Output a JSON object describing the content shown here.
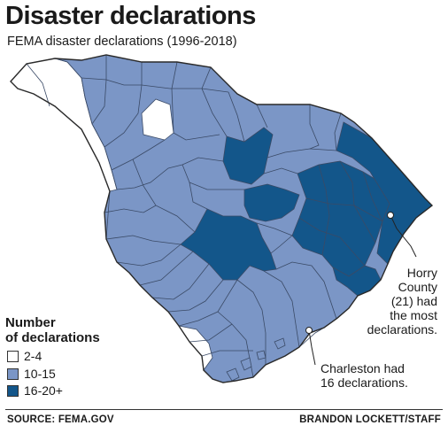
{
  "title": "Disaster declarations",
  "subtitle": "FEMA disaster declarations (1996-2018)",
  "legend": {
    "title_line1": "Number",
    "title_line2": "of declarations",
    "items": [
      {
        "label": "2-4",
        "color": "#ffffff"
      },
      {
        "label": "10-15",
        "color": "#7b96c6"
      },
      {
        "label": "16-20+",
        "color": "#13568a"
      }
    ]
  },
  "annotations": {
    "horry": [
      "Horry",
      "County",
      "(21) had",
      "the most",
      "declarations."
    ],
    "charleston": [
      "Charleston had",
      "16 declarations."
    ]
  },
  "footer": {
    "source": "SOURCE:  FEMA.GOV",
    "credit": "BRANDON LOCKETT/STAFF"
  },
  "colors": {
    "low": "#ffffff",
    "mid": "#7b96c6",
    "high": "#13568a",
    "border": "#2a2a2a",
    "county_line": "#3a4a66"
  }
}
